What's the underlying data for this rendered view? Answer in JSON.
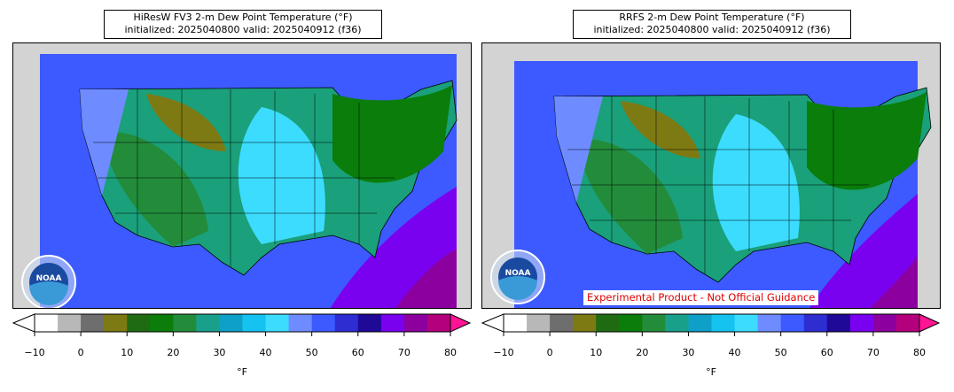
{
  "panels": [
    {
      "title_line1": "HiResW FV3 2-m Dew Point Temperature (°F)",
      "title_line2": "initialized: 2025040800 valid: 2025040912 (f36)",
      "logo_text": "NOAA"
    },
    {
      "title_line1": "RRFS 2-m Dew Point Temperature (°F)",
      "title_line2": "initialized: 2025040800 valid: 2025040912 (f36)",
      "logo_text": "NOAA"
    }
  ],
  "colorbar": {
    "units": "°F",
    "ticks": [
      "−10",
      "0",
      "10",
      "20",
      "30",
      "40",
      "50",
      "60",
      "70",
      "80"
    ],
    "tick_values": [
      -10,
      0,
      10,
      20,
      30,
      40,
      50,
      60,
      70,
      80
    ],
    "range": [
      -10,
      80
    ],
    "under_color": "#ffffff",
    "over_color": "#ff1493",
    "colors": [
      "#ffffff",
      "#b8b8b8",
      "#6e6e6e",
      "#7d7a14",
      "#1f6b12",
      "#0a7d0a",
      "#238c3a",
      "#19a08a",
      "#0ea0c8",
      "#14c3f0",
      "#3cdcff",
      "#6e8cff",
      "#3c5aff",
      "#2d2dd2",
      "#1e0a96",
      "#7a00f0",
      "#8c00a0",
      "#b4007d",
      "#ff1493"
    ]
  },
  "banner": "Experimental Product - Not Official Guidance",
  "map_colors": {
    "ocean": "#3c5aff",
    "land_outside": "#d3d3d3",
    "gulf_purple": "#7a00f0",
    "green_dark": "#0a7d0a",
    "green": "#238c3a",
    "cyan": "#3cdcff",
    "olive": "#7d7a14"
  }
}
